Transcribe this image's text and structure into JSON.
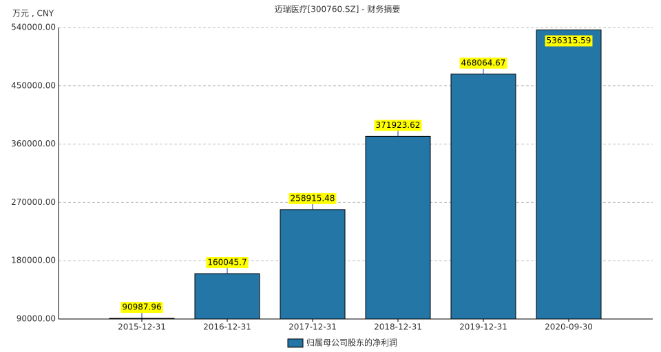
{
  "chart_data": {
    "type": "bar",
    "title": "迈瑞医疗[300760.SZ] - 财务摘要",
    "y_label": "万元 , CNY",
    "categories": [
      "2015-12-31",
      "2016-12-31",
      "2017-12-31",
      "2018-12-31",
      "2019-12-31",
      "2020-09-30"
    ],
    "series": [
      {
        "name": "归属母公司股东的净利润",
        "color": "#2376a5",
        "values": [
          90987.96,
          160045.7,
          258915.48,
          371923.62,
          468064.67,
          536315.59
        ]
      }
    ],
    "ylim": [
      90000,
      540000
    ],
    "yticks": [
      {
        "value": 90000,
        "label": "90000.00"
      },
      {
        "value": 180000,
        "label": "180000.00"
      },
      {
        "value": 270000,
        "label": "270000.00"
      },
      {
        "value": 360000,
        "label": "360000.00"
      },
      {
        "value": 450000,
        "label": "450000.00"
      },
      {
        "value": 540000,
        "label": "540000.00"
      }
    ],
    "grid": true
  }
}
